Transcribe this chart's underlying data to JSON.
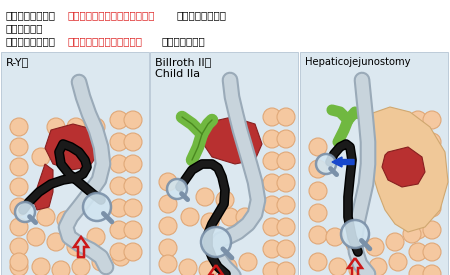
{
  "title_line1_black1": "小腸観察と異なり",
  "title_line1_red": "最終的な内視鏡形状を想定して",
  "title_line1_black2": "オーバーチューブ",
  "title_line2": "を固定する。",
  "title_line3_black1": "短縮のみでなく、",
  "title_line3_red": "ある程度プッシュした状態",
  "title_line3_black2": "でキープする。",
  "panel1_label": "R-Y法",
  "panel2_label1": "Billroth II法",
  "panel2_label2": "Child IIa",
  "panel3_label": "Hepaticojejunostomy",
  "panel_bg": "#dce8f0",
  "intestine_color": "#f5c8a0",
  "intestine_outline": "#e0a878",
  "tube_gray_light": "#c8d4dc",
  "tube_gray_dark": "#9aaab8",
  "scope_color": "#111111",
  "organ_red": "#b83030",
  "organ_red_dark": "#882020",
  "organ_green": "#70b840",
  "organ_green_dark": "#4a8820",
  "arrow_red": "#cc1818",
  "arrow_blue": "#1848cc",
  "magnifier_fill": "#d0e4f0",
  "magnifier_border": "#7a90a8",
  "skin_color": "#f0c898"
}
